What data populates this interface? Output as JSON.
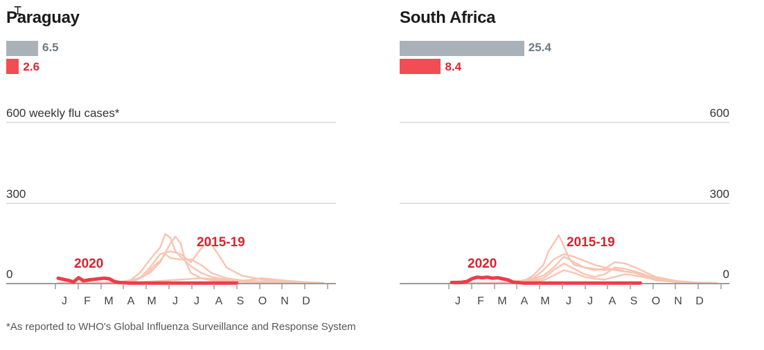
{
  "footnote": "*As reported to WHO's Global Influenza Surveillance and Response System",
  "colors": {
    "history_bar": "#a9b2b8",
    "current_bar": "#f24c55",
    "history_value_text": "#6a7a85",
    "current_value_text": "#e3232f",
    "history_line": "#f9c4b1",
    "current_line": "#ee3d48",
    "series_label": "#d9232e",
    "gridline": "#d8d8d8",
    "baseline": "#9a9a9a"
  },
  "chart_data": [
    {
      "type": "line",
      "title": "Paraguay",
      "ylabel": "weekly flu cases*",
      "ylim": [
        0,
        600
      ],
      "yticks": [
        0,
        300,
        600
      ],
      "xlim": [
        0,
        52
      ],
      "x_tick_labels": [
        "J",
        "F",
        "M",
        "A",
        "M",
        "J",
        "J",
        "A",
        "S",
        "O",
        "N",
        "D"
      ],
      "summary_bars": [
        {
          "series": "2015-19",
          "value": 6.5
        },
        {
          "series": "2020",
          "value": 2.6
        }
      ],
      "series": [
        {
          "name": "2020",
          "x": [
            0,
            1,
            2,
            3,
            4,
            5,
            6,
            7,
            8,
            9,
            10,
            11,
            12,
            13,
            14,
            15,
            16,
            17,
            18,
            19,
            20,
            21,
            22,
            23,
            24,
            25,
            26,
            27,
            28,
            29,
            30,
            31,
            32,
            33,
            34,
            35
          ],
          "y": [
            20,
            16,
            12,
            6,
            22,
            10,
            14,
            16,
            18,
            20,
            18,
            8,
            4,
            3,
            2,
            2,
            2,
            2,
            2,
            2,
            2,
            2,
            2,
            2,
            2,
            2,
            2,
            2,
            2,
            2,
            2,
            2,
            2,
            2,
            2,
            2
          ]
        },
        {
          "name": "2015-19",
          "x": [
            0,
            3,
            6,
            9,
            12,
            15,
            17,
            19,
            20,
            21,
            22,
            24,
            26,
            28,
            30,
            33,
            36,
            40,
            44,
            48,
            52
          ],
          "y": [
            2,
            3,
            4,
            4,
            6,
            10,
            30,
            70,
            85,
            110,
            95,
            90,
            90,
            70,
            40,
            20,
            12,
            8,
            5,
            3,
            2
          ]
        },
        {
          "name": "2015-19",
          "x": [
            0,
            4,
            8,
            12,
            14,
            16,
            18,
            20,
            21,
            22,
            23,
            24,
            26,
            28,
            30,
            34,
            38,
            42,
            46,
            52
          ],
          "y": [
            2,
            3,
            3,
            4,
            10,
            40,
            90,
            135,
            185,
            170,
            120,
            100,
            65,
            40,
            25,
            12,
            8,
            5,
            3,
            2
          ]
        },
        {
          "name": "2015-19",
          "x": [
            0,
            6,
            12,
            16,
            18,
            20,
            22,
            24,
            26,
            28,
            29,
            30,
            31,
            33,
            36,
            40,
            44,
            48,
            52
          ],
          "y": [
            2,
            3,
            5,
            20,
            60,
            110,
            120,
            110,
            80,
            130,
            150,
            145,
            120,
            60,
            30,
            15,
            8,
            4,
            2
          ]
        },
        {
          "name": "2015-19",
          "x": [
            0,
            8,
            14,
            18,
            20,
            22,
            23,
            24,
            25,
            26,
            28,
            30,
            34,
            38,
            42,
            46,
            52
          ],
          "y": [
            2,
            3,
            6,
            40,
            80,
            150,
            175,
            150,
            80,
            40,
            20,
            12,
            8,
            5,
            3,
            2,
            2
          ]
        },
        {
          "name": "2015-19",
          "x": [
            0,
            8,
            16,
            20,
            24,
            28,
            32,
            36,
            40,
            44,
            48,
            52
          ],
          "y": [
            2,
            3,
            5,
            10,
            15,
            20,
            15,
            10,
            20,
            12,
            6,
            3
          ]
        }
      ]
    },
    {
      "type": "line",
      "title": "South Africa",
      "ylabel": "",
      "ylim": [
        0,
        600
      ],
      "yticks": [
        0,
        300,
        600
      ],
      "xlim": [
        0,
        52
      ],
      "x_tick_labels": [
        "J",
        "F",
        "M",
        "A",
        "M",
        "J",
        "J",
        "A",
        "S",
        "O",
        "N",
        "D"
      ],
      "summary_bars": [
        {
          "series": "2015-19",
          "value": 25.4
        },
        {
          "series": "2020",
          "value": 8.4
        }
      ],
      "series": [
        {
          "name": "2020",
          "x": [
            0,
            1,
            2,
            3,
            4,
            5,
            6,
            7,
            8,
            9,
            10,
            11,
            12,
            13,
            14,
            15,
            16,
            17,
            18,
            19,
            20,
            21,
            22,
            23,
            24,
            25,
            26,
            27,
            28,
            29,
            30,
            31,
            32,
            33,
            34,
            35,
            36,
            37
          ],
          "y": [
            4,
            4,
            5,
            8,
            18,
            24,
            22,
            24,
            20,
            22,
            18,
            14,
            6,
            4,
            2,
            2,
            2,
            2,
            2,
            2,
            2,
            2,
            2,
            2,
            2,
            2,
            2,
            2,
            2,
            2,
            2,
            2,
            2,
            2,
            2,
            2,
            2,
            2
          ]
        },
        {
          "name": "2015-19",
          "x": [
            0,
            6,
            12,
            14,
            16,
            18,
            19,
            20,
            21,
            22,
            23,
            24,
            26,
            28,
            30,
            32,
            34,
            36,
            38,
            40,
            44,
            48,
            52
          ],
          "y": [
            2,
            3,
            4,
            8,
            30,
            70,
            120,
            150,
            180,
            140,
            95,
            70,
            60,
            55,
            50,
            55,
            45,
            40,
            25,
            12,
            6,
            3,
            2
          ]
        },
        {
          "name": "2015-19",
          "x": [
            0,
            6,
            12,
            16,
            18,
            20,
            22,
            24,
            26,
            28,
            30,
            32,
            34,
            36,
            38,
            40,
            44,
            48,
            52
          ],
          "y": [
            2,
            3,
            5,
            20,
            50,
            90,
            110,
            100,
            85,
            70,
            60,
            50,
            45,
            40,
            30,
            15,
            8,
            4,
            2
          ]
        },
        {
          "name": "2015-19",
          "x": [
            0,
            8,
            14,
            18,
            20,
            22,
            24,
            26,
            28,
            30,
            32,
            34,
            36,
            40,
            44,
            48,
            52
          ],
          "y": [
            2,
            3,
            6,
            30,
            60,
            100,
            80,
            60,
            50,
            55,
            80,
            75,
            60,
            25,
            10,
            4,
            2
          ]
        },
        {
          "name": "2015-19",
          "x": [
            0,
            8,
            14,
            18,
            20,
            22,
            24,
            26,
            28,
            30,
            32,
            34,
            36,
            40,
            44,
            48,
            52
          ],
          "y": [
            2,
            3,
            5,
            20,
            50,
            75,
            55,
            35,
            25,
            35,
            60,
            55,
            45,
            20,
            8,
            3,
            2
          ]
        },
        {
          "name": "2015-19",
          "x": [
            0,
            8,
            14,
            18,
            20,
            22,
            24,
            26,
            28,
            30,
            32,
            34,
            36,
            40,
            44,
            48,
            52
          ],
          "y": [
            2,
            3,
            4,
            12,
            30,
            50,
            40,
            25,
            18,
            15,
            25,
            35,
            30,
            15,
            6,
            3,
            2
          ]
        }
      ]
    }
  ]
}
